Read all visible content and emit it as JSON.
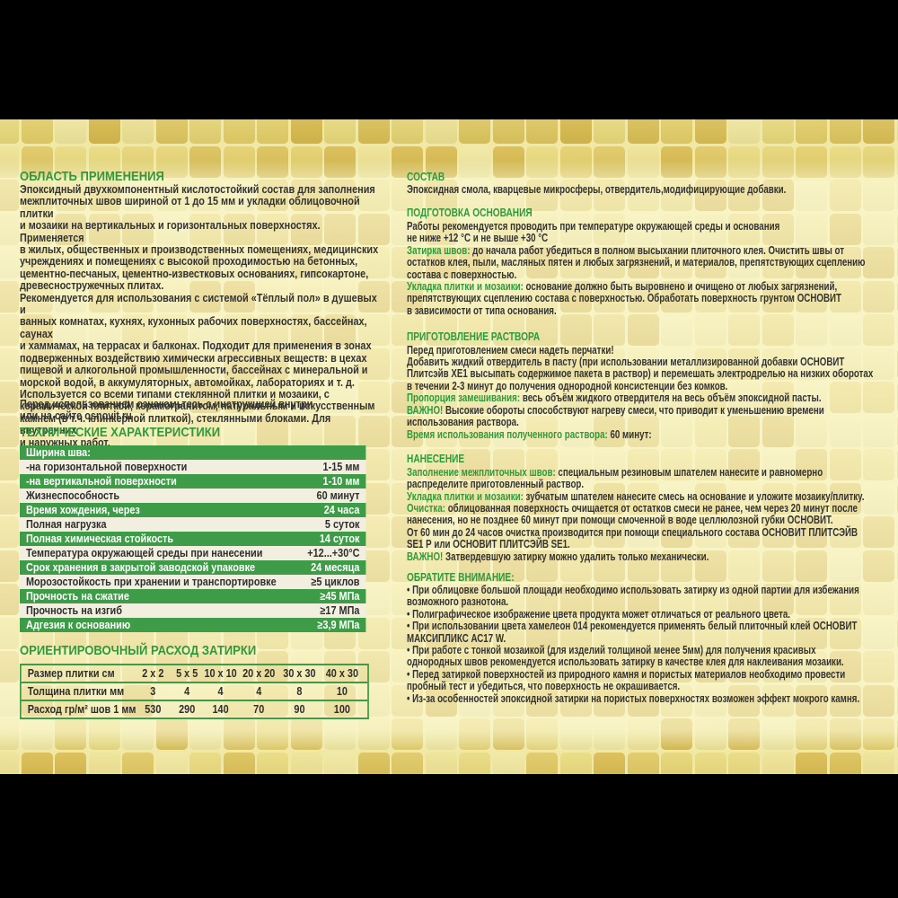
{
  "colors": {
    "accent_green": "#2e9a3c",
    "table_green": "#3e9b48",
    "table_light_row": "#f2efe0",
    "text_dark": "#333333",
    "grout": "#f0e8a4",
    "letterbox": "#000000",
    "tile_palette": [
      "#e9da7b",
      "#dfc75f",
      "#d8ba4c",
      "#eee291",
      "#e4cf68",
      "#f0e79d",
      "#dbc055",
      "#e6d472"
    ]
  },
  "left": {
    "application_title": "ОБЛАСТЬ ПРИМЕНЕНИЯ",
    "application_text": "Эпоксидный двухкомпонентный кислотостойкий состав для заполнения\nмежплиточных швов шириной от 1 до 15 мм и укладки облицовочной плитки\nи мозаики на вертикальных и горизонтальных поверхностях. Применяется\nв жилых, общественных и производственных помещениях, медицинских\nучреждениях и помещениях с высокой проходимостью на бетонных,\nцементно-песчаных, цементно-известковых основаниях, гипсокартоне,\nдревесностружечных плитах.\nРекомендуется для использования с системой «Тёплый пол» в душевых и\nванных комнатах, кухнях, кухонных рабочих поверхностях, бассейнах, саунах\nи хаммамах, на террасах и балконах. Подходит для применения в зонах\nподверженных воздействию химически агрессивных веществ: в цехах\nпищевой и алкогольной промышленности, бассейнах с минеральной и\nморской водой, в аккумуляторных, автомойках, лабораториях и т. д.\nИспользуется со всеми типами стеклянной плитки и мозаики, с\nкерамической плиткой, керамогранитом, натуральным и искусственным\nкамнем (в т.ч. клинкерной плиткой), стеклянными блоками. Для внутренних\nи наружных работ.",
    "application_note": "Перед использованием ознакомьтесь с инструкцией внутри\nили на сайте osnovit.ru",
    "tech_title": "ТЕХНИЧЕСКИЕ ХАРАКТЕРИСТИКИ",
    "consumption_title": "ОРИЕНТИРОВОЧНЫЙ РАСХОД ЗАТИРКИ"
  },
  "tech": {
    "rows": [
      {
        "label": "Ширина шва:",
        "value": ""
      },
      {
        "label": "-на горизонтальной поверхности",
        "value": "1-15 мм"
      },
      {
        "label": "-на вертикальной поверхности",
        "value": "1-10 мм"
      },
      {
        "label": "Жизнеспособность",
        "value": "60 минут"
      },
      {
        "label": "Время хождения, через",
        "value": "24 часа"
      },
      {
        "label": "Полная нагрузка",
        "value": "5 суток"
      },
      {
        "label": "Полная химическая стойкость",
        "value": "14 суток"
      },
      {
        "label": "Температура окружающей среды при нанесении",
        "value": "+12...+30°С"
      },
      {
        "label": "Срок хранения в закрытой заводской упаковке",
        "value": "24 месяца"
      },
      {
        "label": "Морозостойкость при хранении и транспортировке",
        "value": "≥5 циклов"
      },
      {
        "label": "Прочность на сжатие",
        "value": "≥45 МПа"
      },
      {
        "label": "Прочность на изгиб",
        "value": "≥17 МПа"
      },
      {
        "label": "Адгезия к основанию",
        "value": "≥3,9 МПа"
      }
    ]
  },
  "consumption": {
    "rows": [
      [
        "Размер плитки см",
        "2 x 2",
        "5 x 5",
        "10 x 10",
        "20 x 20",
        "30 x 30",
        "40 x 30"
      ],
      [
        "Толщина плитки мм",
        "3",
        "4",
        "4",
        "4",
        "8",
        "10"
      ],
      [
        "Расход гр/м² шов 1 мм",
        "530",
        "290",
        "140",
        "70",
        "90",
        "100"
      ]
    ]
  },
  "right": {
    "composition_title": "СОСТАВ",
    "composition_text": "Эпоксидная смола, кварцевые микросферы, отвердитель,модифицирующие добавки.",
    "preparation_title": "ПОДГОТОВКА ОСНОВАНИЯ",
    "preparation_p1": "Работы рекомендуется проводить при температуре окружающей среды и основания\nне ниже +12 °С и не выше +30 °С",
    "grouting_label": "Затирка швов:",
    "grouting_text": " до начала работ убедиться в полном высыхании плиточного клея. Очистить швы от\nостатков клея, пыли, масляных пятен и любых загрязнений, и материалов, препятствующих сцеплению\nсостава с поверхностью.",
    "laying_label": "Укладка плитки и мозаики:",
    "laying_text": " основание должно быть выровнено и очищено от любых загрязнений,\nпрепятствующих сцеплению состава с поверхностью. Обработать поверхность грунтом ОСНОВИТ\nв зависимости от типа основания.",
    "mixing_title": "ПРИГОТОВЛЕНИЕ РАСТВОРА",
    "mixing_p1": "Перед приготовлением смеси надеть перчатки!",
    "mixing_p2": "Добавить жидкий отвердитель в пасту (при использовании металлизированной добавки ОСНОВИТ\nПлитсэйв ХЕ1 высыпать содержимое пакета в раствор) и перемешать электродрелью на низких оборотах\nв течении 2-3 минут до получения однородной консистенции без комков.",
    "proportion_label": "Пропорция замешивания:",
    "proportion_text": " весь объём жидкого отвердителя на весь объём эпоксидной пасты.",
    "important1_label": "ВАЖНО!",
    "important1_text": " Высокие обороты способствуют нагреву смеси, что приводит к уменьшению времени\nиспользования раствора.",
    "potlife_label": "Время использования полученного раствора:",
    "potlife_text": " 60 минут:",
    "apply_title": "НАНЕСЕНИЕ",
    "filling_label": "Заполнение межплиточных швов:",
    "filling_text": " специальным резиновым шпателем нанесите и равномерно\nраспределите приготовленный раствор.",
    "laying2_label": "Укладка плитки и мозаики:",
    "laying2_text": " зубчатым шпателем нанесите смесь на основание и уложите мозаику/плитку.",
    "cleaning_label": "Очистка:",
    "cleaning_text": " облицованная поверхность очищается от остатков смеси не ранее, чем через 20 минут после\nнанесения, но не позднее 60 минут при помощи смоченной в воде целлюлозной губки ОСНОВИТ.\nОт 60 мин до 24 часов очистка производится при помощи специального состава ОСНОВИТ ПЛИТСЭЙВ\nSE1 Р или ОСНОВИТ ПЛИТСЭЙВ SE1.",
    "important2_label": "ВАЖНО!",
    "important2_text": " Затвердевшую затирку можно удалить только механически.",
    "notes_title": "ОБРАТИТЕ ВНИМАНИЕ:",
    "notes": [
      "• При облицовке большой площади необходимо использовать затирку из одной партии для избежания\nвозможного разнотона.",
      "• Полиграфическое изображение цвета продукта может отличаться от реального цвета.",
      "• При использовании цвета хамелеон 014 рекомендуется применять белый плиточный клей ОСНОВИТ\nМАКСИПЛИКС АС17 W.",
      "• При работе с тонкой мозаикой (для изделий толщиной менее 5мм) для получения красивых\nоднородных швов рекомендуется использовать затирку в качестве клея для наклеивания мозаики.",
      "• Перед затиркой поверхностей из природного камня и пористых материалов необходимо провести\nпробный тест и убедиться, что поверхность не окрашивается.",
      "• Из-за особенностей эпоксидной затирки на пористых поверхностях  возможен эффект мокрого камня."
    ]
  }
}
